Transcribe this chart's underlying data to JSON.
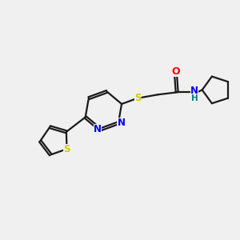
{
  "bg_color": "#f0f0f0",
  "bond_color": "#1a1a1a",
  "bond_width": 1.6,
  "s_color": "#cccc00",
  "n_color": "#0000ee",
  "o_color": "#ff0000",
  "nh_color": "#008080",
  "figsize": [
    3.0,
    3.0
  ],
  "dpi": 100,
  "xlim": [
    0,
    10
  ],
  "ylim": [
    0,
    10
  ]
}
